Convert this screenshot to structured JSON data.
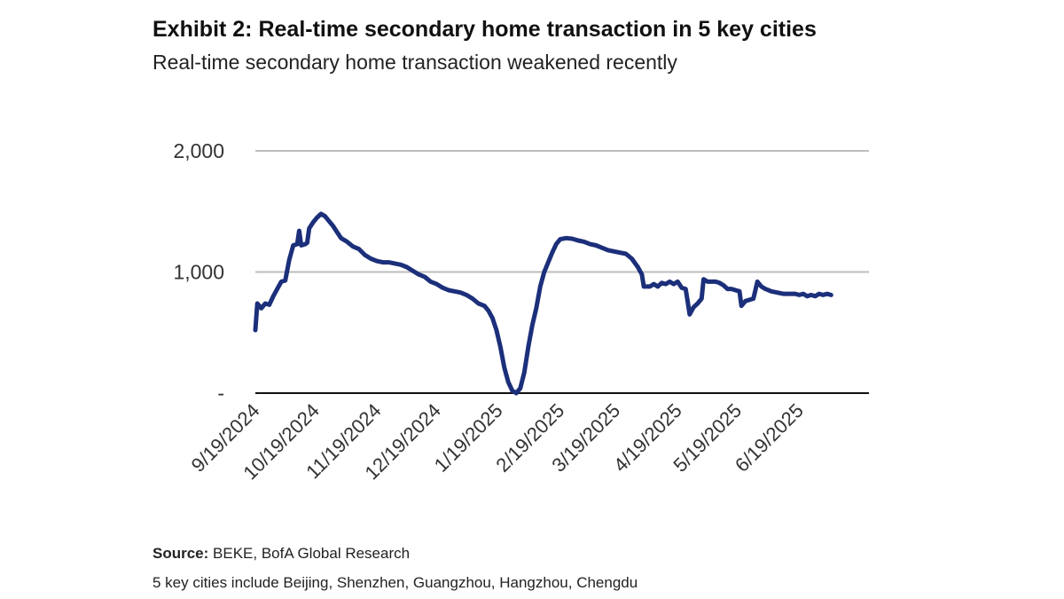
{
  "header": {
    "title": "Exhibit 2: Real-time secondary home transaction in 5 key cities",
    "subtitle": "Real-time secondary home transaction weakened recently"
  },
  "footer": {
    "source_label": "Source:",
    "source_text": " BEKE, BofA Global Research",
    "note": "5 key cities include Beijing, Shenzhen, Guangzhou, Hangzhou, Chengdu"
  },
  "colors": {
    "line": "#1b2f7a",
    "grid": "#bdbdbd",
    "axis": "#111111"
  },
  "chart_data": {
    "type": "line",
    "title": "Exhibit 2: Real-time secondary home transaction in 5 key cities",
    "subtitle": "Real-time secondary home transaction weakened recently",
    "xlabel": "",
    "ylabel": "",
    "ylim": [
      0,
      2000
    ],
    "xlim": [
      "2024-09-19",
      "2025-07-24"
    ],
    "yticks": [
      {
        "value": 0,
        "label": "-"
      },
      {
        "value": 1000,
        "label": "1,000"
      },
      {
        "value": 2000,
        "label": "2,000"
      }
    ],
    "xticks": [
      {
        "date": "2024-09-19",
        "label": "9/19/2024"
      },
      {
        "date": "2024-10-19",
        "label": "10/19/2024"
      },
      {
        "date": "2024-11-19",
        "label": "11/19/2024"
      },
      {
        "date": "2024-12-19",
        "label": "12/19/2024"
      },
      {
        "date": "2025-01-19",
        "label": "1/19/2025"
      },
      {
        "date": "2025-02-19",
        "label": "2/19/2025"
      },
      {
        "date": "2025-03-19",
        "label": "3/19/2025"
      },
      {
        "date": "2025-04-19",
        "label": "4/19/2025"
      },
      {
        "date": "2025-05-19",
        "label": "5/19/2025"
      },
      {
        "date": "2025-06-19",
        "label": "6/19/2025"
      }
    ],
    "grid": true,
    "legend": "none",
    "series": [
      {
        "points": [
          [
            "2024-09-19",
            520
          ],
          [
            "2024-09-20",
            740
          ],
          [
            "2024-09-22",
            700
          ],
          [
            "2024-09-24",
            740
          ],
          [
            "2024-09-26",
            730
          ],
          [
            "2024-09-28",
            800
          ],
          [
            "2024-09-30",
            860
          ],
          [
            "2024-10-02",
            920
          ],
          [
            "2024-10-04",
            930
          ],
          [
            "2024-10-06",
            1100
          ],
          [
            "2024-10-08",
            1220
          ],
          [
            "2024-10-10",
            1230
          ],
          [
            "2024-10-11",
            1340
          ],
          [
            "2024-10-12",
            1220
          ],
          [
            "2024-10-14",
            1230
          ],
          [
            "2024-10-15",
            1240
          ],
          [
            "2024-10-16",
            1360
          ],
          [
            "2024-10-18",
            1410
          ],
          [
            "2024-10-20",
            1450
          ],
          [
            "2024-10-22",
            1480
          ],
          [
            "2024-10-24",
            1460
          ],
          [
            "2024-10-26",
            1420
          ],
          [
            "2024-10-28",
            1380
          ],
          [
            "2024-10-30",
            1330
          ],
          [
            "2024-11-01",
            1280
          ],
          [
            "2024-11-04",
            1250
          ],
          [
            "2024-11-07",
            1210
          ],
          [
            "2024-11-10",
            1190
          ],
          [
            "2024-11-13",
            1140
          ],
          [
            "2024-11-16",
            1110
          ],
          [
            "2024-11-19",
            1090
          ],
          [
            "2024-11-22",
            1080
          ],
          [
            "2024-11-25",
            1080
          ],
          [
            "2024-11-28",
            1070
          ],
          [
            "2024-12-01",
            1060
          ],
          [
            "2024-12-04",
            1040
          ],
          [
            "2024-12-07",
            1010
          ],
          [
            "2024-12-10",
            980
          ],
          [
            "2024-12-13",
            960
          ],
          [
            "2024-12-16",
            920
          ],
          [
            "2024-12-19",
            900
          ],
          [
            "2024-12-22",
            870
          ],
          [
            "2024-12-25",
            850
          ],
          [
            "2024-12-28",
            840
          ],
          [
            "2024-12-31",
            830
          ],
          [
            "2025-01-03",
            810
          ],
          [
            "2025-01-06",
            780
          ],
          [
            "2025-01-09",
            740
          ],
          [
            "2025-01-12",
            720
          ],
          [
            "2025-01-14",
            680
          ],
          [
            "2025-01-16",
            620
          ],
          [
            "2025-01-18",
            520
          ],
          [
            "2025-01-20",
            380
          ],
          [
            "2025-01-22",
            210
          ],
          [
            "2025-01-24",
            90
          ],
          [
            "2025-01-26",
            20
          ],
          [
            "2025-01-28",
            0
          ],
          [
            "2025-01-30",
            40
          ],
          [
            "2025-02-01",
            170
          ],
          [
            "2025-02-03",
            380
          ],
          [
            "2025-02-05",
            560
          ],
          [
            "2025-02-07",
            700
          ],
          [
            "2025-02-09",
            880
          ],
          [
            "2025-02-11",
            1000
          ],
          [
            "2025-02-13",
            1080
          ],
          [
            "2025-02-15",
            1160
          ],
          [
            "2025-02-17",
            1230
          ],
          [
            "2025-02-19",
            1270
          ],
          [
            "2025-02-22",
            1280
          ],
          [
            "2025-02-25",
            1275
          ],
          [
            "2025-02-28",
            1260
          ],
          [
            "2025-03-03",
            1250
          ],
          [
            "2025-03-06",
            1230
          ],
          [
            "2025-03-09",
            1220
          ],
          [
            "2025-03-12",
            1200
          ],
          [
            "2025-03-15",
            1180
          ],
          [
            "2025-03-18",
            1170
          ],
          [
            "2025-03-21",
            1160
          ],
          [
            "2025-03-24",
            1150
          ],
          [
            "2025-03-27",
            1110
          ],
          [
            "2025-03-30",
            1040
          ],
          [
            "2025-04-01",
            980
          ],
          [
            "2025-04-02",
            880
          ],
          [
            "2025-04-05",
            880
          ],
          [
            "2025-04-07",
            900
          ],
          [
            "2025-04-09",
            880
          ],
          [
            "2025-04-11",
            910
          ],
          [
            "2025-04-13",
            900
          ],
          [
            "2025-04-15",
            920
          ],
          [
            "2025-04-17",
            900
          ],
          [
            "2025-04-19",
            920
          ],
          [
            "2025-04-21",
            870
          ],
          [
            "2025-04-23",
            860
          ],
          [
            "2025-04-24",
            760
          ],
          [
            "2025-04-25",
            650
          ],
          [
            "2025-04-27",
            710
          ],
          [
            "2025-04-29",
            740
          ],
          [
            "2025-05-01",
            780
          ],
          [
            "2025-05-02",
            940
          ],
          [
            "2025-05-04",
            920
          ],
          [
            "2025-05-06",
            920
          ],
          [
            "2025-05-08",
            920
          ],
          [
            "2025-05-10",
            910
          ],
          [
            "2025-05-12",
            890
          ],
          [
            "2025-05-14",
            860
          ],
          [
            "2025-05-16",
            860
          ],
          [
            "2025-05-18",
            850
          ],
          [
            "2025-05-20",
            840
          ],
          [
            "2025-05-21",
            720
          ],
          [
            "2025-05-23",
            760
          ],
          [
            "2025-05-25",
            770
          ],
          [
            "2025-05-27",
            780
          ],
          [
            "2025-05-29",
            920
          ],
          [
            "2025-05-31",
            880
          ],
          [
            "2025-06-02",
            860
          ],
          [
            "2025-06-05",
            840
          ],
          [
            "2025-06-08",
            830
          ],
          [
            "2025-06-11",
            820
          ],
          [
            "2025-06-14",
            820
          ],
          [
            "2025-06-17",
            820
          ],
          [
            "2025-06-19",
            810
          ],
          [
            "2025-06-21",
            820
          ],
          [
            "2025-06-23",
            800
          ],
          [
            "2025-06-25",
            810
          ],
          [
            "2025-06-27",
            800
          ],
          [
            "2025-06-29",
            820
          ],
          [
            "2025-07-01",
            810
          ],
          [
            "2025-07-03",
            820
          ],
          [
            "2025-07-05",
            810
          ]
        ]
      }
    ]
  }
}
